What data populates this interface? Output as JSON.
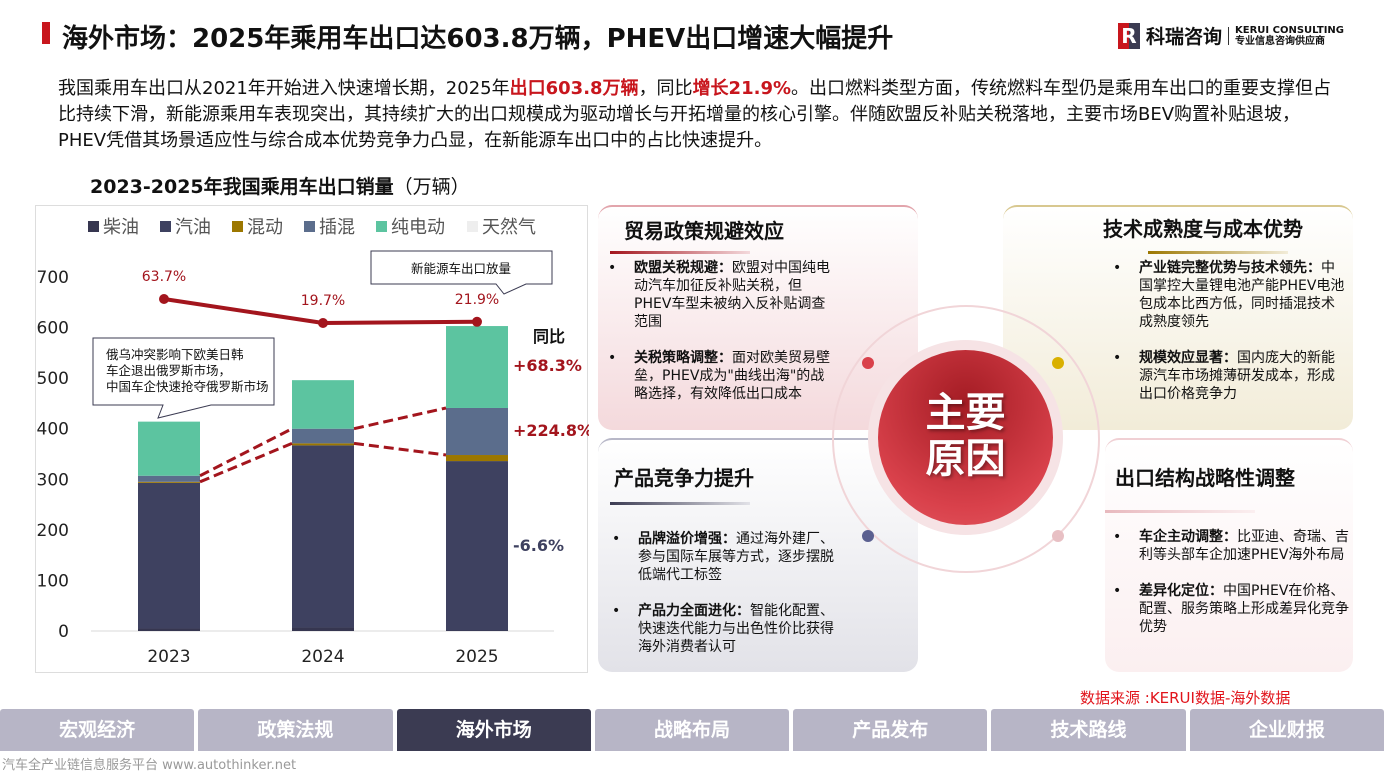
{
  "header": {
    "title": "海外市场：2025年乘用车出口达603.8万辆，PHEV出口增速大幅提升",
    "logo_mark": "R",
    "logo_cn": "科瑞咨询",
    "logo_en": "KERUI CONSULTING",
    "logo_tagline": "专业信息咨询供应商"
  },
  "intro": {
    "p1": "我国乘用车出口从2021年开始进入快速增长期，2025年",
    "h1": "出口603.8万辆",
    "p2": "，同比",
    "h2": "增长21.9%",
    "p3": "。出口燃料类型方面，传统燃料车型仍是乘用车出口的重要支撑但占比持续下滑，新能源乘用车表现突出，其持续扩大的出口规模成为驱动增长与开拓增量的核心引擎。伴随欧盟反补贴关税落地，主要市场BEV购置补贴退坡，PHEV凭借其场景适应性与综合成本优势竞争力凸显，在新能源车出口中的占比快速提升。"
  },
  "chart_title": {
    "main": "2023-2025年我国乘用车出口销量",
    "unit": "（万辆）"
  },
  "chart_data": {
    "type": "bar",
    "stacked": true,
    "categories": [
      "2023",
      "2024",
      "2025"
    ],
    "yticks": [
      0,
      100,
      200,
      300,
      400,
      500,
      600,
      700
    ],
    "ylim": [
      0,
      700
    ],
    "series": [
      {
        "name": "柴油",
        "color": "#363650",
        "values": [
          5,
          7,
          1
        ]
      },
      {
        "name": "汽油",
        "color": "#3e4160",
        "values": [
          288,
          360,
          335
        ]
      },
      {
        "name": "混动",
        "color": "#9c7700",
        "values": [
          2,
          4,
          12
        ]
      },
      {
        "name": "插混",
        "color": "#5b6d8c",
        "values": [
          12,
          29,
          93
        ]
      },
      {
        "name": "纯电动",
        "color": "#5cc4a0",
        "values": [
          107,
          96,
          162
        ]
      },
      {
        "name": "天然气",
        "color": "#eeeeee",
        "values": [
          0,
          0,
          0
        ]
      }
    ],
    "growth_line": {
      "color": "#a3151d",
      "values": [
        63.7,
        19.7,
        21.9
      ],
      "labels": [
        "63.7%",
        "19.7%",
        "21.9%"
      ]
    },
    "yoy_title": "同比",
    "yoy": [
      {
        "label": "+68.3%",
        "color": "#a3151d"
      },
      {
        "label": "+224.8%",
        "color": "#a3151d"
      },
      {
        "label": "-6.6%",
        "color": "#3e4160"
      }
    ],
    "callouts": [
      "新能源车出口放量",
      "俄乌冲突影响下欧美日韩车企退出俄罗斯市场，中国车企快速抢夺俄罗斯市场"
    ]
  },
  "cards": {
    "tl": {
      "title": "贸易政策规避效应",
      "items": [
        {
          "b": "欧盟关税规避：",
          "t": "欧盟对中国纯电动汽车加征反补贴关税，但PHEV车型未被纳入反补贴调查范围"
        },
        {
          "b": "关税策略调整：",
          "t": "面对欧美贸易壁垒，PHEV成为\"曲线出海\"的战略选择，有效降低出口成本"
        }
      ]
    },
    "bl": {
      "title": "产品竞争力提升",
      "items": [
        {
          "b": "品牌溢价增强：",
          "t": "通过海外建厂、参与国际车展等方式，逐步摆脱低端代工标签"
        },
        {
          "b": "产品力全面进化：",
          "t": "智能化配置、快速迭代能力与出色性价比获得海外消费者认可"
        }
      ]
    },
    "tr": {
      "title": "技术成熟度与成本优势",
      "items": [
        {
          "b": "产业链完整优势与技术领先：",
          "t": "中国掌控大量锂电池产能PHEV电池包成本比西方低，同时插混技术成熟度领先"
        },
        {
          "b": "规模效应显著：",
          "t": "国内庞大的新能源汽车市场摊薄研发成本，形成出口价格竞争力"
        }
      ]
    },
    "br": {
      "title": "出口结构战略性调整",
      "items": [
        {
          "b": "车企主动调整：",
          "t": "比亚迪、奇瑞、吉利等头部车企加速PHEV海外布局"
        },
        {
          "b": "差异化定位：",
          "t": "中国PHEV在价格、配置、服务策略上形成差异化竞争优势"
        }
      ]
    }
  },
  "center": {
    "line1": "主要",
    "line2": "原因"
  },
  "source": "数据来源 :KERUI数据-海外数据",
  "nav": [
    "宏观经济",
    "政策法规",
    "海外市场",
    "战略布局",
    "产品发布",
    "技术路线",
    "企业财报"
  ],
  "nav_active": 2,
  "footer": "汽车全产业链信息服务平台 www.autothinker.net"
}
